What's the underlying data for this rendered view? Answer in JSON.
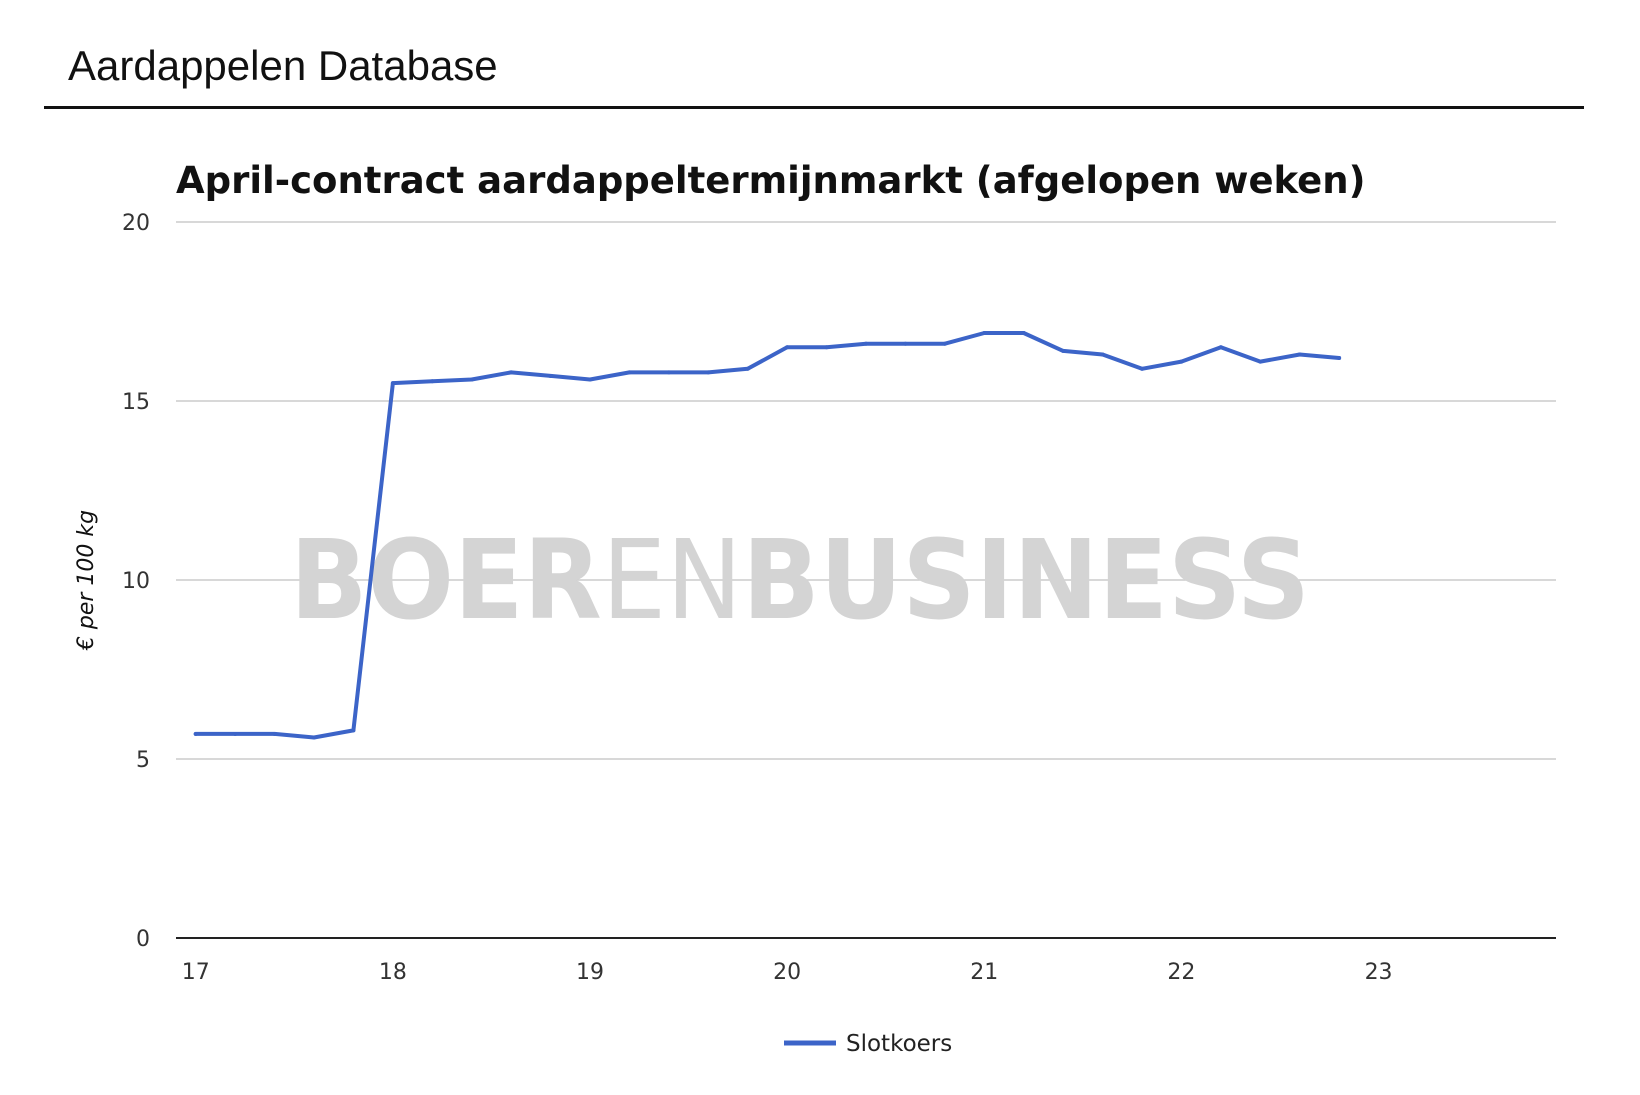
{
  "page": {
    "title": "Aardappelen Database"
  },
  "watermark": {
    "part1": "BOER",
    "part2": "EN",
    "part3": "BUSINESS",
    "color": "#d4d4d4"
  },
  "chart_data": {
    "type": "line",
    "title": "April-contract aardappeltermijnmarkt (afgelopen weken)",
    "xlabel": "",
    "ylabel": "€ per 100 kg",
    "xlim": [
      16.9,
      23.9
    ],
    "ylim": [
      0,
      20
    ],
    "xticks": [
      "17",
      "18",
      "19",
      "20",
      "21",
      "22",
      "23"
    ],
    "yticks": [
      "0",
      "5",
      "10",
      "15",
      "20"
    ],
    "grid": true,
    "legend": "bottom",
    "series": [
      {
        "name": "Slotkoers",
        "color": "#3c64c8",
        "x": [
          17.0,
          17.2,
          17.4,
          17.6,
          17.8,
          18.0,
          18.2,
          18.4,
          18.6,
          18.8,
          19.0,
          19.2,
          19.4,
          19.6,
          19.8,
          20.0,
          20.2,
          20.4,
          20.6,
          20.8,
          21.0,
          21.2,
          21.4,
          21.6,
          21.8,
          22.0,
          22.2,
          22.4,
          22.6,
          22.8
        ],
        "values": [
          5.7,
          5.7,
          5.7,
          5.6,
          5.8,
          15.5,
          15.55,
          15.6,
          15.8,
          15.7,
          15.6,
          15.8,
          15.8,
          15.8,
          15.9,
          16.5,
          16.5,
          16.6,
          16.6,
          16.6,
          16.9,
          16.9,
          16.4,
          16.3,
          15.9,
          16.1,
          16.5,
          16.1,
          16.3,
          16.2
        ]
      }
    ]
  }
}
